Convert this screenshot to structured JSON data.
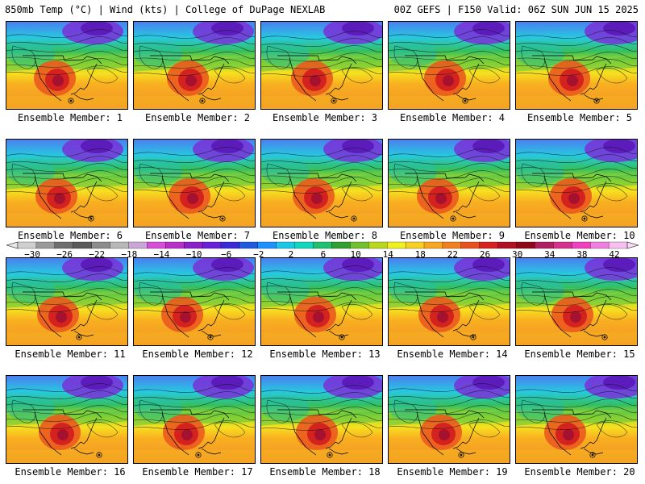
{
  "header": {
    "left": "850mb Temp (°C) | Wind (kts) | College of DuPage NEXLAB",
    "right": "00Z GEFS | F150 Valid: 06Z SUN JUN 15 2025"
  },
  "members": [
    "Ensemble Member: 1",
    "Ensemble Member: 2",
    "Ensemble Member: 3",
    "Ensemble Member: 4",
    "Ensemble Member: 5",
    "Ensemble Member: 6",
    "Ensemble Member: 7",
    "Ensemble Member: 8",
    "Ensemble Member: 9",
    "Ensemble Member: 10",
    "Ensemble Member: 11",
    "Ensemble Member: 12",
    "Ensemble Member: 13",
    "Ensemble Member: 14",
    "Ensemble Member: 15",
    "Ensemble Member: 16",
    "Ensemble Member: 17",
    "Ensemble Member: 18",
    "Ensemble Member: 19",
    "Ensemble Member: 20"
  ],
  "colorbar": {
    "labels": [
      "−30",
      "−26",
      "−22",
      "−18",
      "−14",
      "−10",
      "−6",
      "−2",
      "2",
      "6",
      "10",
      "14",
      "18",
      "22",
      "26",
      "30",
      "34",
      "38",
      "42"
    ],
    "colors": [
      "#cfcfcf",
      "#9a9a9a",
      "#6e6e6e",
      "#5a5a5a",
      "#8c8c8c",
      "#b8b8b8",
      "#c9a6d6",
      "#d64fd6",
      "#b830c8",
      "#8a20c8",
      "#6a20d8",
      "#3a2ad8",
      "#1f5ae0",
      "#1e90ff",
      "#19c8e8",
      "#10d8c0",
      "#20c070",
      "#30a030",
      "#70c030",
      "#b8d820",
      "#f0f020",
      "#f8d020",
      "#f8a820",
      "#f08020",
      "#e85020",
      "#d82020",
      "#b01020",
      "#900818",
      "#b02060",
      "#d83090",
      "#f040c0",
      "#f080e0",
      "#f8c0f0"
    ]
  }
}
